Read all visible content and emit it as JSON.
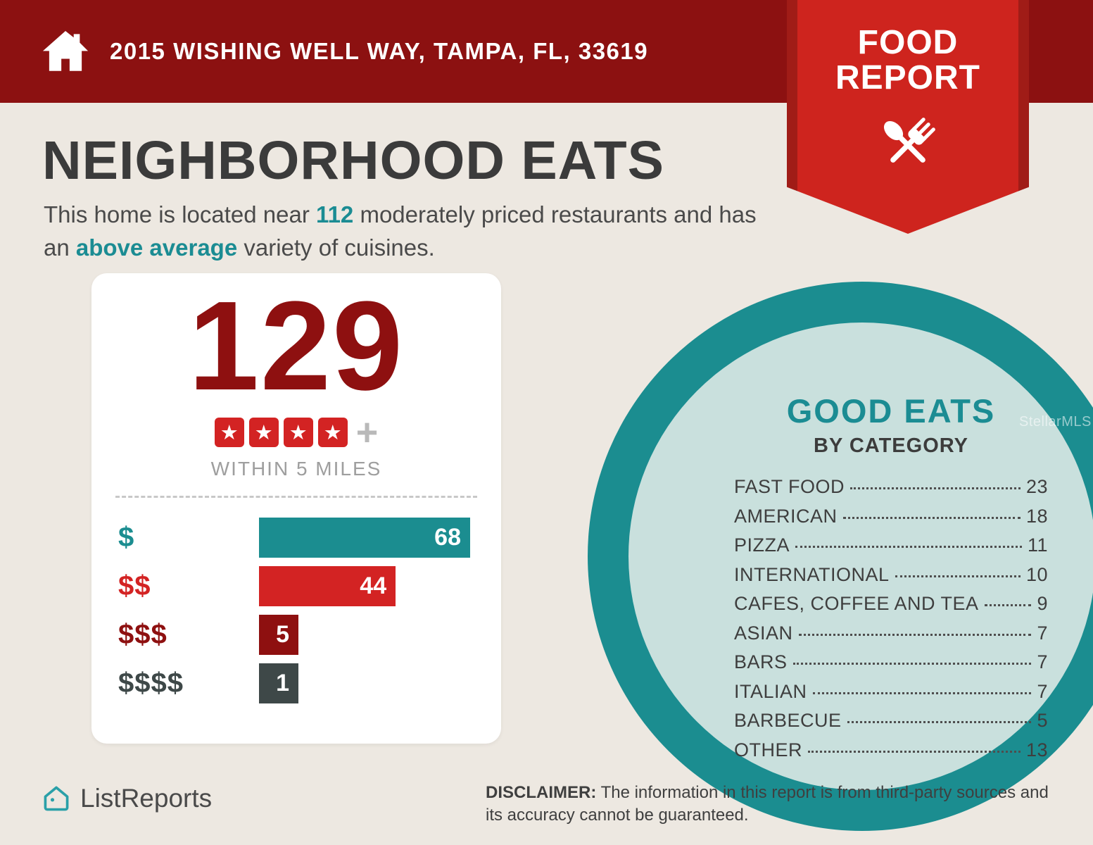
{
  "colors": {
    "header_red": "#8C1111",
    "ribbon_red": "#CE241E",
    "teal": "#1B8C93",
    "background": "#EDE8E1",
    "card_white": "#FFFFFF",
    "circle_outer": "#1B8D90",
    "circle_inner": "#C9E0DD"
  },
  "header": {
    "address": "2015 WISHING WELL WAY, TAMPA, FL, 33619"
  },
  "ribbon": {
    "line1": "FOOD",
    "line2": "REPORT"
  },
  "intro": {
    "title": "NEIGHBORHOOD EATS",
    "text_before": "This home is located near ",
    "count": "112",
    "text_middle": " moderately priced restaurants and has an ",
    "highlight": "above average",
    "text_after": " variety of cuisines."
  },
  "stats_card": {
    "total": "129",
    "rating_stars": 4,
    "plus_sign": "+",
    "radius_label": "WITHIN 5 MILES",
    "bars": [
      {
        "label": "$",
        "value": 68,
        "color": "#1B8D90"
      },
      {
        "label": "$$",
        "value": 44,
        "color": "#D32323"
      },
      {
        "label": "$$$",
        "value": 5,
        "color": "#8E1010"
      },
      {
        "label": "$$$$",
        "value": 1,
        "color": "#3E4848"
      }
    ]
  },
  "good_eats": {
    "title": "GOOD EATS",
    "subtitle": "BY CATEGORY",
    "items": [
      {
        "label": "FAST FOOD",
        "value": 23
      },
      {
        "label": "AMERICAN",
        "value": 18
      },
      {
        "label": "PIZZA",
        "value": 11
      },
      {
        "label": "INTERNATIONAL",
        "value": 10
      },
      {
        "label": "CAFES, COFFEE AND TEA",
        "value": 9
      },
      {
        "label": "ASIAN",
        "value": 7
      },
      {
        "label": "BARS",
        "value": 7
      },
      {
        "label": "ITALIAN",
        "value": 7
      },
      {
        "label": "BARBECUE",
        "value": 5
      },
      {
        "label": "OTHER",
        "value": 13
      }
    ]
  },
  "watermark": "StellarMLS",
  "footer": {
    "brand": "ListReports",
    "disclaimer_label": "DISCLAIMER:",
    "disclaimer_text": " The information in this report is from third-party sources and its accuracy cannot be guaranteed."
  },
  "chart_data": [
    {
      "type": "bar",
      "orientation": "horizontal",
      "title": "129 restaurants rated 4+ stars within 5 miles, by price tier",
      "categories": [
        "$",
        "$$",
        "$$$",
        "$$$$"
      ],
      "values": [
        68,
        44,
        5,
        1
      ],
      "total": 129,
      "note": "WITHIN 5 MILES"
    },
    {
      "type": "table",
      "title": "GOOD EATS BY CATEGORY",
      "categories": [
        "FAST FOOD",
        "AMERICAN",
        "PIZZA",
        "INTERNATIONAL",
        "CAFES, COFFEE AND TEA",
        "ASIAN",
        "BARS",
        "ITALIAN",
        "BARBECUE",
        "OTHER"
      ],
      "values": [
        23,
        18,
        11,
        10,
        9,
        7,
        7,
        7,
        5,
        13
      ]
    }
  ]
}
